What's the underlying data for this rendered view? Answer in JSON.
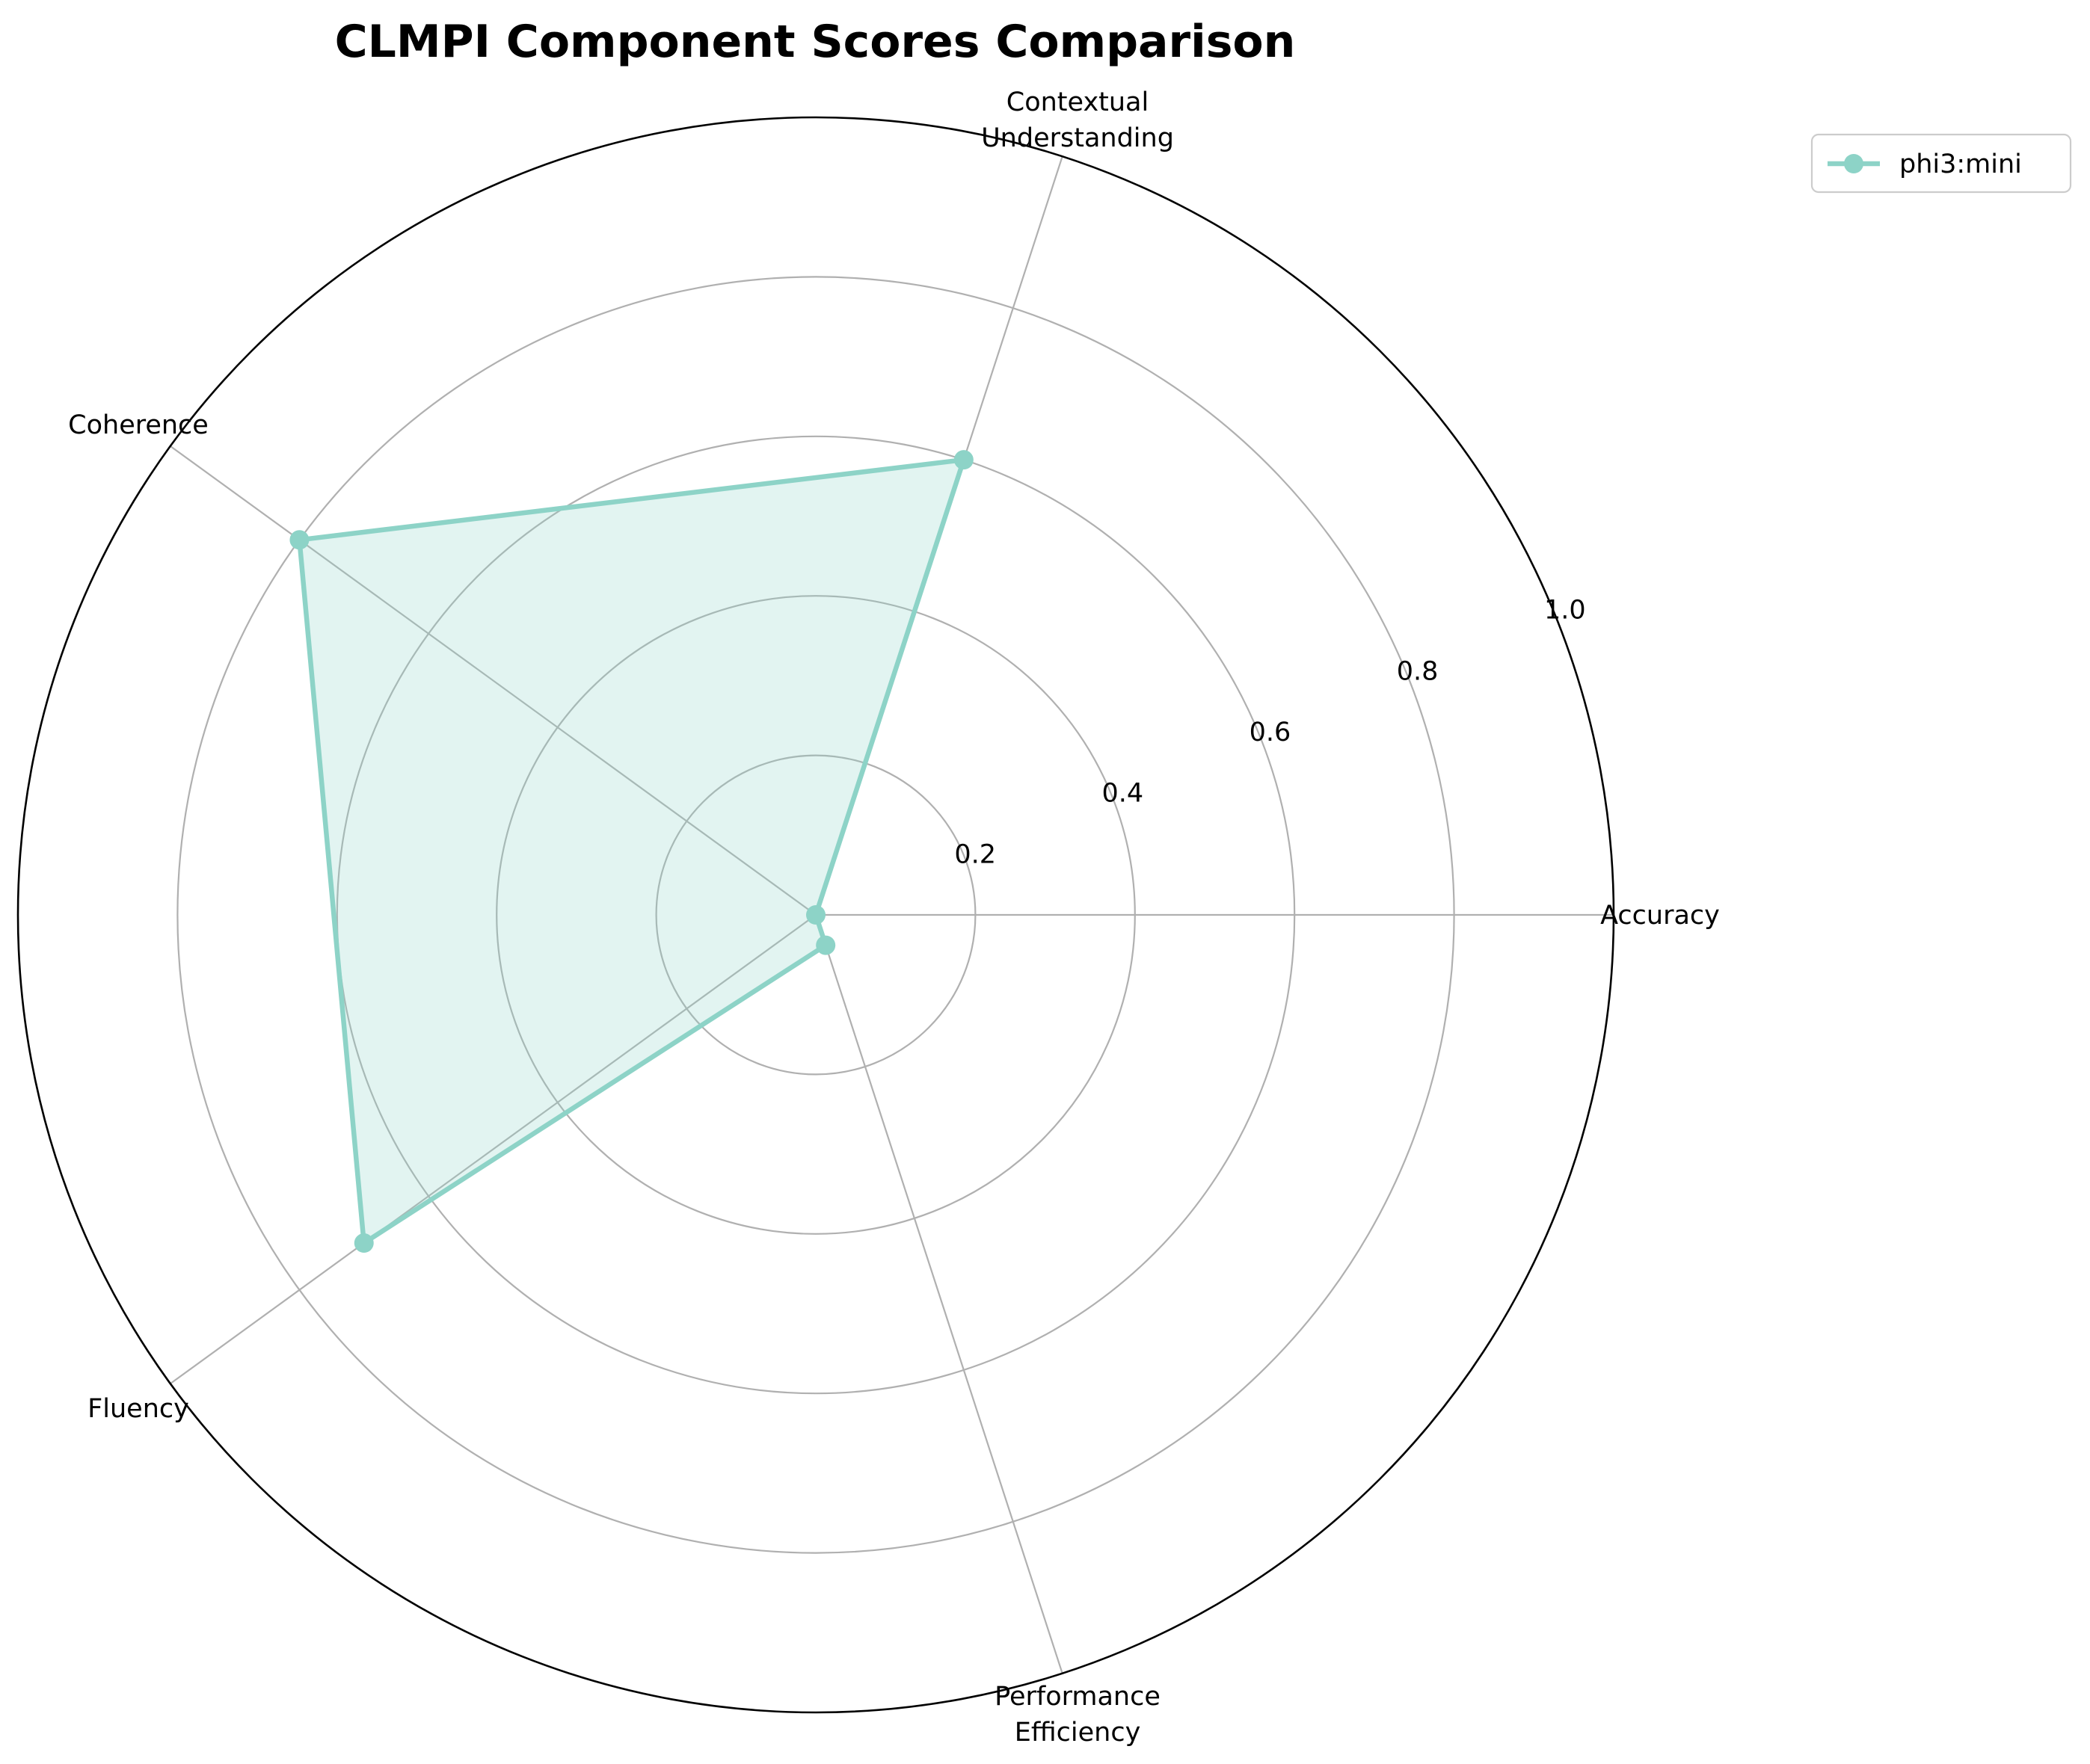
{
  "chart_data": {
    "type": "radar",
    "title": "CLMPI Component Scores Comparison",
    "categories": [
      "Accuracy",
      "Contextual\nUnderstanding",
      "Coherence",
      "Fluency",
      "Performance\nEfficiency"
    ],
    "rlim": [
      0,
      1.0
    ],
    "rticks": [
      0.2,
      0.4,
      0.6,
      0.8,
      1.0
    ],
    "rtick_labels": [
      "0.2",
      "0.4",
      "0.6",
      "0.8",
      "1.0"
    ],
    "grid": true,
    "legend_position": "top-right",
    "series": [
      {
        "name": "phi3:mini",
        "values": [
          0.0,
          0.6,
          0.8,
          0.7,
          0.04
        ],
        "color": "#8dd3c7"
      }
    ]
  }
}
